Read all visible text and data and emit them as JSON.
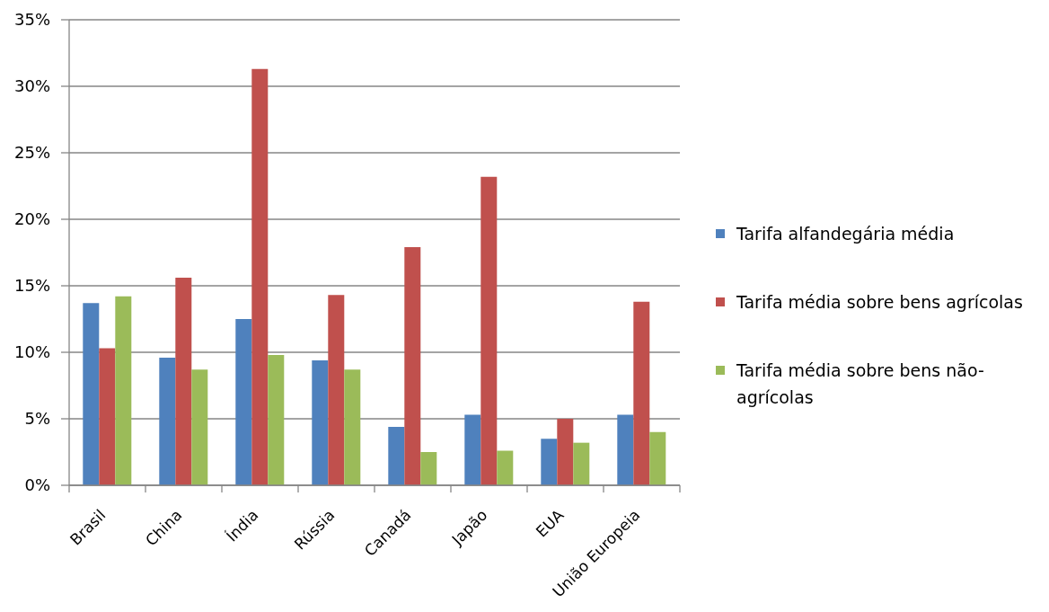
{
  "chart_data": {
    "type": "bar",
    "categories": [
      "Brasil",
      "China",
      "Índia",
      "Rússia",
      "Canadá",
      "Japão",
      "EUA",
      "União Europeia"
    ],
    "series": [
      {
        "name": "Tarifa alfandegária média",
        "color": "#4f81bd",
        "values": [
          13.7,
          9.6,
          12.5,
          9.4,
          4.4,
          5.3,
          3.5,
          5.3
        ]
      },
      {
        "name": "Tarifa média sobre bens agrícolas",
        "color": "#c0504d",
        "values": [
          10.3,
          15.6,
          31.3,
          14.3,
          17.9,
          23.2,
          5.0,
          13.8
        ]
      },
      {
        "name": "Tarifa média sobre bens não-agrícolas",
        "color": "#9bbb59",
        "values": [
          14.2,
          8.7,
          9.8,
          8.7,
          2.5,
          2.6,
          3.2,
          4.0
        ]
      }
    ],
    "ylim": [
      0,
      35
    ],
    "yticks": [
      {
        "value": 0,
        "label": "0%"
      },
      {
        "value": 5,
        "label": "5%"
      },
      {
        "value": 10,
        "label": "10%"
      },
      {
        "value": 15,
        "label": "15%"
      },
      {
        "value": 20,
        "label": "20%"
      },
      {
        "value": 25,
        "label": "25%"
      },
      {
        "value": 30,
        "label": "30%"
      },
      {
        "value": 35,
        "label": "35%"
      }
    ],
    "grid": "y",
    "legend": "right"
  }
}
